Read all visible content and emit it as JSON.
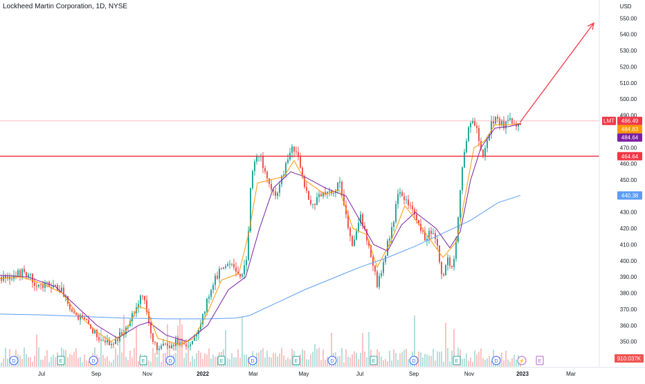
{
  "header": {
    "title": "Lockheed Martin Corporation, 1D, NYSE"
  },
  "chart_data": {
    "type": "candlestick",
    "currency_label": "USD",
    "y_ticks": [
      350,
      360,
      370,
      380,
      390,
      400,
      410,
      420,
      430,
      440,
      450,
      460,
      470,
      480,
      490,
      500,
      510,
      520,
      530,
      540,
      550
    ],
    "x_ticks": [
      "Jul",
      "Sep",
      "Nov",
      "2022",
      "Mar",
      "May",
      "Jul",
      "Sep",
      "Nov",
      "2023",
      "Mar"
    ],
    "ylim": [
      343,
      557
    ],
    "price_path": [
      [
        0,
        390
      ],
      [
        8,
        388
      ],
      [
        20,
        392
      ],
      [
        35,
        393
      ],
      [
        48,
        387
      ],
      [
        60,
        384
      ],
      [
        72,
        386
      ],
      [
        85,
        383
      ],
      [
        95,
        377
      ],
      [
        105,
        368
      ],
      [
        118,
        364
      ],
      [
        128,
        360
      ],
      [
        138,
        354
      ],
      [
        148,
        352
      ],
      [
        158,
        348
      ],
      [
        168,
        352
      ],
      [
        178,
        356
      ],
      [
        188,
        366
      ],
      [
        198,
        374
      ],
      [
        205,
        380
      ],
      [
        210,
        371
      ],
      [
        218,
        352
      ],
      [
        225,
        345
      ],
      [
        235,
        350
      ],
      [
        245,
        348
      ],
      [
        255,
        350
      ],
      [
        265,
        346
      ],
      [
        275,
        350
      ],
      [
        285,
        358
      ],
      [
        295,
        370
      ],
      [
        305,
        385
      ],
      [
        315,
        392
      ],
      [
        325,
        398
      ],
      [
        335,
        400
      ],
      [
        345,
        390
      ],
      [
        355,
        398
      ],
      [
        362,
        450
      ],
      [
        368,
        462
      ],
      [
        374,
        468
      ],
      [
        380,
        455
      ],
      [
        388,
        448
      ],
      [
        396,
        438
      ],
      [
        404,
        448
      ],
      [
        412,
        458
      ],
      [
        420,
        470
      ],
      [
        428,
        466
      ],
      [
        436,
        452
      ],
      [
        444,
        440
      ],
      [
        452,
        434
      ],
      [
        460,
        442
      ],
      [
        468,
        440
      ],
      [
        476,
        442
      ],
      [
        484,
        444
      ],
      [
        490,
        450
      ],
      [
        496,
        436
      ],
      [
        502,
        420
      ],
      [
        508,
        408
      ],
      [
        514,
        420
      ],
      [
        520,
        430
      ],
      [
        526,
        418
      ],
      [
        532,
        408
      ],
      [
        538,
        398
      ],
      [
        544,
        384
      ],
      [
        550,
        394
      ],
      [
        556,
        404
      ],
      [
        562,
        416
      ],
      [
        568,
        426
      ],
      [
        574,
        440
      ],
      [
        580,
        442
      ],
      [
        586,
        436
      ],
      [
        592,
        434
      ],
      [
        598,
        428
      ],
      [
        606,
        420
      ],
      [
        614,
        414
      ],
      [
        622,
        418
      ],
      [
        630,
        410
      ],
      [
        638,
        390
      ],
      [
        646,
        400
      ],
      [
        654,
        396
      ],
      [
        660,
        420
      ],
      [
        666,
        455
      ],
      [
        672,
        470
      ],
      [
        676,
        485
      ],
      [
        682,
        488
      ],
      [
        690,
        478
      ],
      [
        696,
        462
      ],
      [
        702,
        474
      ],
      [
        708,
        484
      ],
      [
        714,
        488
      ],
      [
        720,
        486
      ],
      [
        728,
        484
      ],
      [
        736,
        486
      ],
      [
        744,
        482
      ],
      [
        752,
        486
      ]
    ],
    "ema_short": [
      [
        0,
        389
      ],
      [
        30,
        390
      ],
      [
        60,
        386
      ],
      [
        90,
        380
      ],
      [
        110,
        368
      ],
      [
        140,
        356
      ],
      [
        160,
        350
      ],
      [
        180,
        355
      ],
      [
        200,
        372
      ],
      [
        212,
        370
      ],
      [
        228,
        352
      ],
      [
        260,
        348
      ],
      [
        280,
        352
      ],
      [
        300,
        368
      ],
      [
        320,
        388
      ],
      [
        345,
        392
      ],
      [
        360,
        418
      ],
      [
        372,
        448
      ],
      [
        390,
        450
      ],
      [
        410,
        452
      ],
      [
        425,
        462
      ],
      [
        440,
        450
      ],
      [
        470,
        441
      ],
      [
        490,
        444
      ],
      [
        510,
        420
      ],
      [
        530,
        416
      ],
      [
        545,
        396
      ],
      [
        565,
        412
      ],
      [
        585,
        434
      ],
      [
        610,
        420
      ],
      [
        640,
        402
      ],
      [
        660,
        412
      ],
      [
        672,
        440
      ],
      [
        685,
        470
      ],
      [
        700,
        474
      ],
      [
        715,
        484
      ],
      [
        735,
        484
      ],
      [
        752,
        485
      ]
    ],
    "ma_medium": [
      [
        0,
        391
      ],
      [
        40,
        390
      ],
      [
        80,
        384
      ],
      [
        110,
        372
      ],
      [
        140,
        360
      ],
      [
        170,
        352
      ],
      [
        200,
        360
      ],
      [
        215,
        362
      ],
      [
        240,
        354
      ],
      [
        270,
        350
      ],
      [
        300,
        360
      ],
      [
        330,
        382
      ],
      [
        355,
        390
      ],
      [
        375,
        420
      ],
      [
        395,
        445
      ],
      [
        420,
        455
      ],
      [
        440,
        452
      ],
      [
        470,
        445
      ],
      [
        500,
        440
      ],
      [
        520,
        425
      ],
      [
        540,
        410
      ],
      [
        560,
        406
      ],
      [
        580,
        422
      ],
      [
        600,
        430
      ],
      [
        630,
        420
      ],
      [
        650,
        408
      ],
      [
        665,
        418
      ],
      [
        680,
        450
      ],
      [
        695,
        470
      ],
      [
        715,
        482
      ],
      [
        735,
        483
      ],
      [
        752,
        484.6
      ]
    ],
    "ma_long": [
      [
        0,
        367
      ],
      [
        60,
        366.5
      ],
      [
        120,
        365.5
      ],
      [
        180,
        364.5
      ],
      [
        240,
        364
      ],
      [
        300,
        364
      ],
      [
        340,
        364.5
      ],
      [
        360,
        366
      ],
      [
        400,
        374
      ],
      [
        440,
        382
      ],
      [
        480,
        389
      ],
      [
        520,
        396
      ],
      [
        560,
        402
      ],
      [
        600,
        409
      ],
      [
        640,
        417
      ],
      [
        680,
        425
      ],
      [
        720,
        436
      ],
      [
        752,
        440.4
      ]
    ],
    "levels": {
      "horizontal": 464.64,
      "last": 486.49
    },
    "price_labels": [
      {
        "text": "LMT",
        "color": "#f23645"
      },
      {
        "text": "486.49",
        "color": "#f23645"
      },
      {
        "text": "484.83",
        "color": "#ff9800"
      },
      {
        "text": "484.64",
        "color": "#7b1fa2"
      },
      {
        "text": "464.64",
        "color": "#f23645"
      },
      {
        "text": "440.38",
        "color": "#5b9cf6"
      }
    ],
    "projection_arrow": {
      "from": [
        752,
        486
      ],
      "to": [
        858,
        547
      ]
    },
    "volume_label": "910.037K",
    "event_markers": [
      {
        "x": 20,
        "label": "D",
        "kind": "dividend"
      },
      {
        "x": 88,
        "label": "E",
        "kind": "earnings"
      },
      {
        "x": 135,
        "label": "D",
        "kind": "dividend"
      },
      {
        "x": 207,
        "label": "E",
        "kind": "earnings"
      },
      {
        "x": 246,
        "label": "D",
        "kind": "dividend"
      },
      {
        "x": 320,
        "label": "E",
        "kind": "earnings"
      },
      {
        "x": 365,
        "label": "D",
        "kind": "dividend"
      },
      {
        "x": 428,
        "label": "E",
        "kind": "earnings"
      },
      {
        "x": 480,
        "label": "D",
        "kind": "dividend"
      },
      {
        "x": 540,
        "label": "E",
        "kind": "earnings"
      },
      {
        "x": 598,
        "label": "D",
        "kind": "dividend"
      },
      {
        "x": 660,
        "label": "E",
        "kind": "earnings"
      },
      {
        "x": 717,
        "label": "D",
        "kind": "dividend"
      },
      {
        "x": 754,
        "label": "⚡",
        "kind": "split"
      },
      {
        "x": 780,
        "label": "E",
        "kind": "earnings-upcoming"
      }
    ],
    "colors": {
      "up": "#26a69a",
      "down": "#ef5350",
      "ema": "#ff9800",
      "ma_mid": "#7b1fa2",
      "ma_long": "#5b9cf6",
      "level": "#f23645"
    },
    "grid": false,
    "legend": "none"
  }
}
